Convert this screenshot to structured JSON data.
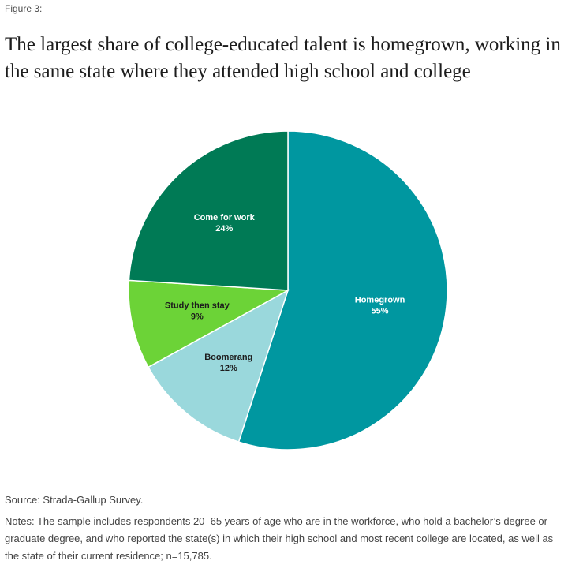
{
  "figure_label": "Figure 3:",
  "title": "The largest share of college-educated talent is homegrown, working in the same state where they attended high school and college",
  "source": "Source: Strada-Gallup Survey.",
  "notes": "Notes: The sample includes respondents 20–65 years of age who are in the workforce, who hold a bachelor’s degree or graduate degree, and who reported the state(s) in which their high school and most recent college are located, as well as the state of their current residence; n=15,785.",
  "chart_data": {
    "type": "pie",
    "title": "The largest share of college-educated talent is homegrown, working in the same state where they attended high school and college",
    "slices": [
      {
        "label": "Homegrown",
        "value": 55,
        "display": "55%",
        "color": "#0097a0",
        "text_color": "#ffffff"
      },
      {
        "label": "Boomerang",
        "value": 12,
        "display": "12%",
        "color": "#9ad8dc",
        "text_color": "#1c1c1c"
      },
      {
        "label": "Study then stay",
        "value": 9,
        "display": "9%",
        "color": "#6cd337",
        "text_color": "#1c1c1c"
      },
      {
        "label": "Come for work",
        "value": 24,
        "display": "24%",
        "color": "#007a55",
        "text_color": "#ffffff"
      }
    ],
    "start_angle": "12 o'clock",
    "direction": "clockwise",
    "legend": "none"
  }
}
